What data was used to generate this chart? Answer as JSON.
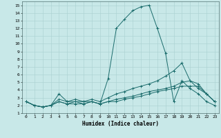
{
  "title": "",
  "xlabel": "Humidex (Indice chaleur)",
  "background_color": "#c8e8e8",
  "grid_color": "#a8d0d0",
  "line_color": "#1a6b6b",
  "xlim": [
    -0.5,
    23.5
  ],
  "ylim": [
    1,
    15.5
  ],
  "xticks": [
    0,
    1,
    2,
    3,
    4,
    5,
    6,
    7,
    8,
    9,
    10,
    11,
    12,
    13,
    14,
    15,
    16,
    17,
    18,
    19,
    20,
    21,
    22,
    23
  ],
  "yticks": [
    1,
    2,
    3,
    4,
    5,
    6,
    7,
    8,
    9,
    10,
    11,
    12,
    13,
    14,
    15
  ],
  "series": [
    {
      "x": [
        0,
        1,
        2,
        3,
        4,
        5,
        6,
        7,
        8,
        9,
        10,
        11,
        12,
        13,
        14,
        15,
        16,
        17,
        18,
        19,
        20,
        21,
        22,
        23
      ],
      "y": [
        2.5,
        2.0,
        1.8,
        2.0,
        3.5,
        2.5,
        2.5,
        2.2,
        2.5,
        2.2,
        5.5,
        12.0,
        13.2,
        14.3,
        14.8,
        15.0,
        12.0,
        8.8,
        2.5,
        5.2,
        4.2,
        3.5,
        2.5,
        2.0
      ]
    },
    {
      "x": [
        0,
        1,
        2,
        3,
        4,
        5,
        6,
        7,
        8,
        9,
        10,
        11,
        12,
        13,
        14,
        15,
        16,
        17,
        18,
        19,
        20,
        21,
        22,
        23
      ],
      "y": [
        2.5,
        2.0,
        1.8,
        2.0,
        2.8,
        2.5,
        2.8,
        2.5,
        2.8,
        2.5,
        3.0,
        3.5,
        3.8,
        4.2,
        4.5,
        4.8,
        5.2,
        5.8,
        6.5,
        7.5,
        5.2,
        4.2,
        3.5,
        2.5
      ]
    },
    {
      "x": [
        0,
        1,
        2,
        3,
        4,
        5,
        6,
        7,
        8,
        9,
        10,
        11,
        12,
        13,
        14,
        15,
        16,
        17,
        18,
        19,
        20,
        21,
        22,
        23
      ],
      "y": [
        2.5,
        2.0,
        1.8,
        2.0,
        2.5,
        2.2,
        2.5,
        2.5,
        2.5,
        2.2,
        2.5,
        2.8,
        3.0,
        3.2,
        3.5,
        3.8,
        4.0,
        4.2,
        4.5,
        5.0,
        5.2,
        4.8,
        3.5,
        2.5
      ]
    },
    {
      "x": [
        0,
        1,
        2,
        3,
        4,
        5,
        6,
        7,
        8,
        9,
        10,
        11,
        12,
        13,
        14,
        15,
        16,
        17,
        18,
        19,
        20,
        21,
        22,
        23
      ],
      "y": [
        2.5,
        2.0,
        1.8,
        2.0,
        2.5,
        2.2,
        2.2,
        2.2,
        2.5,
        2.2,
        2.5,
        2.5,
        2.8,
        3.0,
        3.2,
        3.5,
        3.8,
        4.0,
        4.2,
        4.5,
        4.5,
        4.5,
        3.5,
        2.5
      ]
    }
  ]
}
